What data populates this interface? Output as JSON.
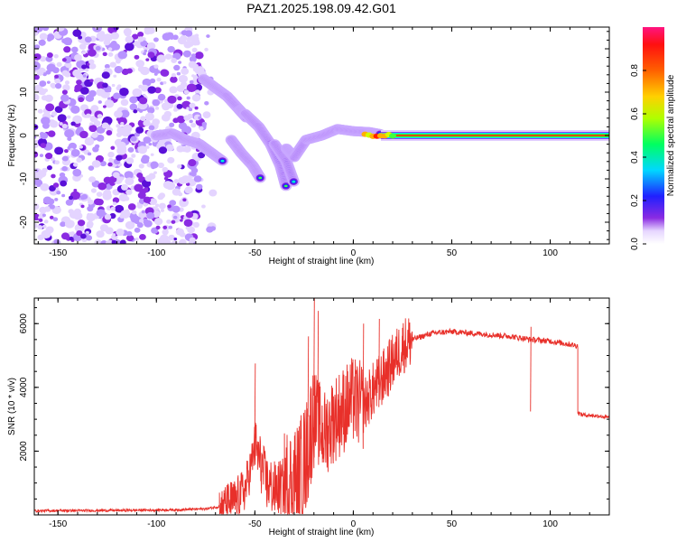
{
  "title": "PAZ1.2025.198.09.42.G01",
  "colorbar": {
    "label": "Normalized spectral amplitude",
    "ticks": [
      "0.0",
      "0.2",
      "0.4",
      "0.6",
      "0.8"
    ],
    "tick_values": [
      0.0,
      0.2,
      0.4,
      0.6,
      0.8
    ],
    "range": [
      0,
      1
    ],
    "colors": [
      "#ffffff",
      "#8a2be2",
      "#0000ff",
      "#00ffff",
      "#00ff00",
      "#ffff00",
      "#ff8000",
      "#ff0000",
      "#ff1493"
    ]
  },
  "chart_data": [
    {
      "type": "heatmap",
      "xlabel": "Height of straight line (km)",
      "ylabel": "Frequency (Hz)",
      "xlim": [
        -162,
        130
      ],
      "ylim": [
        -25,
        25
      ],
      "xticks": [
        -150,
        -100,
        -50,
        0,
        50,
        100
      ],
      "yticks": [
        -20,
        -10,
        0,
        10,
        20
      ],
      "noise_region_x": [
        -162,
        -77
      ],
      "features": [
        {
          "x": [
            -76,
            -70,
            -64,
            -58,
            -54
          ],
          "y": [
            13,
            11,
            9,
            6,
            4
          ]
        },
        {
          "x": [
            -100,
            -92,
            -85,
            -78,
            -72,
            -66
          ],
          "y": [
            0,
            0.5,
            -1,
            -2,
            -4,
            -6
          ]
        },
        {
          "x": [
            -62,
            -57,
            -51,
            -47
          ],
          "y": [
            -1,
            -4,
            -7,
            -10
          ]
        },
        {
          "x": [
            -55,
            -48,
            -42,
            -37,
            -34
          ],
          "y": [
            5,
            2,
            -2,
            -7,
            -12
          ]
        },
        {
          "x": [
            -40,
            -34,
            -30
          ],
          "y": [
            -2,
            -6,
            -11
          ]
        },
        {
          "x": [
            -34,
            -30,
            -24,
            -16,
            -8,
            0,
            8,
            14
          ],
          "y": [
            -3,
            -5,
            -1,
            0,
            1.5,
            1,
            0.8,
            0.3
          ]
        }
      ],
      "carrier": {
        "x_start": 14,
        "x_end": 130,
        "y": 0
      }
    },
    {
      "type": "line",
      "xlabel": "Height of straight line (km)",
      "ylabel": "SNR (10 * v/v)",
      "xlim": [
        -162,
        130
      ],
      "ylim": [
        0,
        6800
      ],
      "xticks": [
        -150,
        -100,
        -50,
        0,
        50,
        100
      ],
      "yticks": [
        2000,
        4000,
        6000
      ],
      "color": "#e8302a",
      "segments": [
        {
          "x": [
            -162,
            -120,
            -90,
            -75,
            -68
          ],
          "y": [
            130,
            140,
            160,
            190,
            260
          ],
          "noise": 40
        },
        {
          "x": [
            -68,
            -60,
            -55,
            -52,
            -50
          ],
          "y": [
            260,
            450,
            800,
            1500,
            2200
          ],
          "noise": 700
        },
        {
          "x": [
            -50,
            -47,
            -44,
            -40,
            -35
          ],
          "y": [
            2200,
            1600,
            1000,
            800,
            900
          ],
          "noise": 900
        },
        {
          "x": [
            -35,
            -28,
            -24,
            -22,
            -20
          ],
          "y": [
            900,
            1200,
            1800,
            2500,
            3200
          ],
          "noise": 1800
        },
        {
          "x": [
            -20,
            -15,
            -10,
            -5,
            0,
            5
          ],
          "y": [
            3200,
            2500,
            3000,
            3300,
            3600,
            3400
          ],
          "noise": 1400
        },
        {
          "x": [
            5,
            10,
            15,
            20,
            25,
            30
          ],
          "y": [
            3400,
            3900,
            4300,
            4800,
            5300,
            5500
          ],
          "noise": 900
        },
        {
          "x": [
            30,
            40,
            50,
            60,
            70,
            80,
            90,
            100,
            110,
            114
          ],
          "y": [
            5500,
            5700,
            5750,
            5700,
            5650,
            5600,
            5500,
            5450,
            5350,
            5300
          ],
          "noise": 90
        },
        {
          "x": [
            114,
            116,
            120,
            125,
            130
          ],
          "y": [
            3200,
            3150,
            3120,
            3100,
            3050
          ],
          "noise": 60
        }
      ],
      "spikes": [
        {
          "x": -50,
          "y": 4750
        },
        {
          "x": -20,
          "y": 6800
        },
        {
          "x": -18,
          "y": 6400
        },
        {
          "x": -23,
          "y": 5600
        },
        {
          "x": 5,
          "y": 6000
        },
        {
          "x": 13,
          "y": 6150
        },
        {
          "x": 90,
          "y": 5900
        }
      ]
    }
  ]
}
